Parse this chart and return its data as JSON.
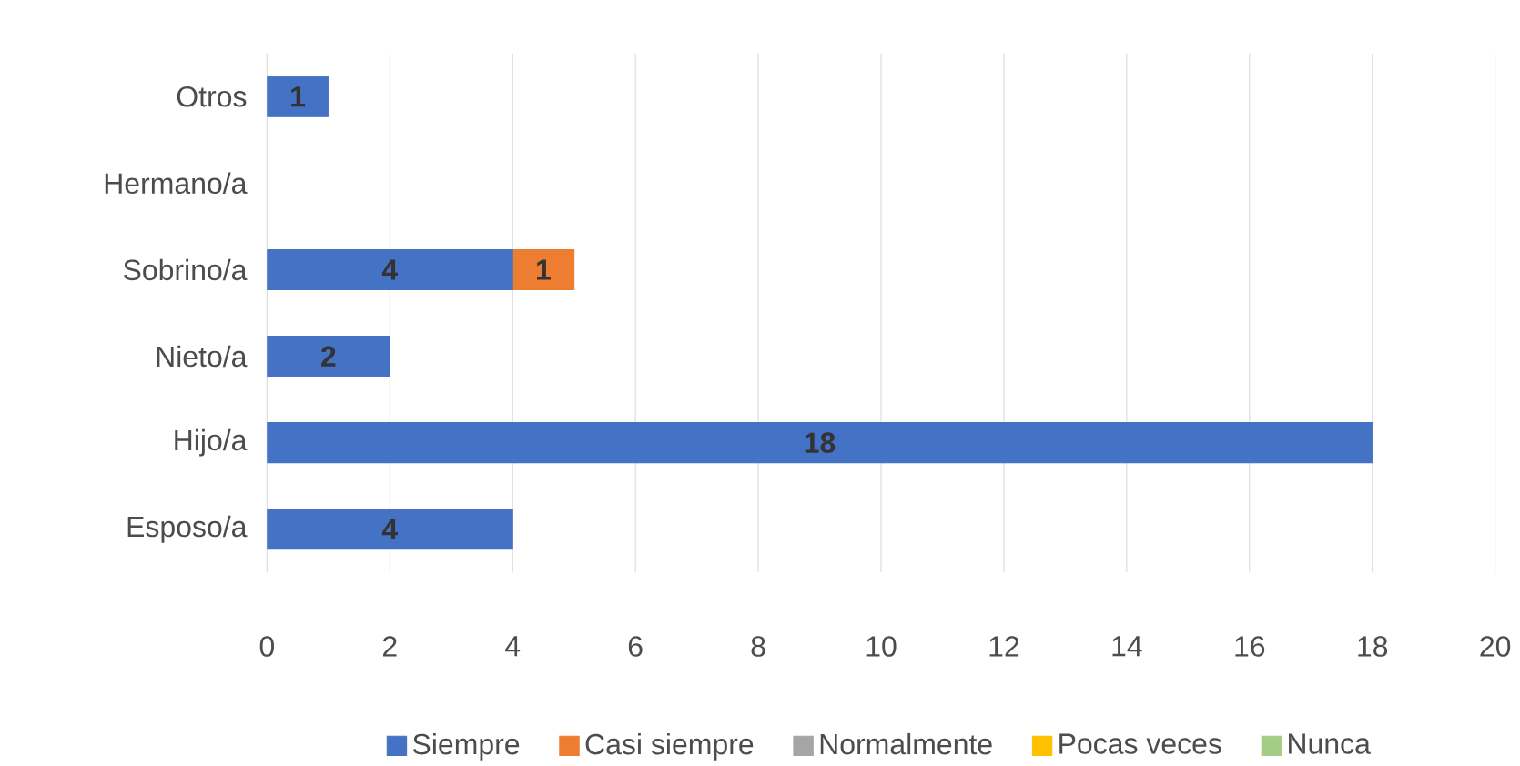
{
  "chart_data": {
    "type": "bar",
    "orientation": "horizontal",
    "stacked": true,
    "categories": [
      "Otros",
      "Hermano/a",
      "Sobrino/a",
      "Nieto/a",
      "Hijo/a",
      "Esposo/a"
    ],
    "series": [
      {
        "name": "Siempre",
        "color": "#4472c4",
        "values": [
          1,
          0,
          4,
          2,
          18,
          4
        ],
        "value_labels": [
          "1",
          null,
          "4",
          "2",
          "18",
          "4"
        ]
      },
      {
        "name": "Casi siempre",
        "color": "#ed7d31",
        "values": [
          0,
          0,
          1,
          0,
          0,
          0
        ],
        "value_labels": [
          null,
          null,
          "1",
          null,
          null,
          null
        ]
      },
      {
        "name": "Normalmente",
        "color": "#a5a5a5",
        "values": [
          0,
          0,
          0,
          0,
          0,
          0
        ]
      },
      {
        "name": "Pocas veces",
        "color": "#ffc000",
        "values": [
          0,
          0,
          0,
          0,
          0,
          0
        ]
      },
      {
        "name": "Nunca",
        "color": "#a3cc85",
        "values": [
          0,
          0,
          0,
          0,
          0,
          0
        ]
      }
    ],
    "xlim": [
      0,
      20
    ],
    "xticks": [
      0,
      2,
      4,
      6,
      8,
      10,
      12,
      14,
      16,
      18,
      20
    ],
    "grid": "x",
    "legend": "bottom"
  }
}
